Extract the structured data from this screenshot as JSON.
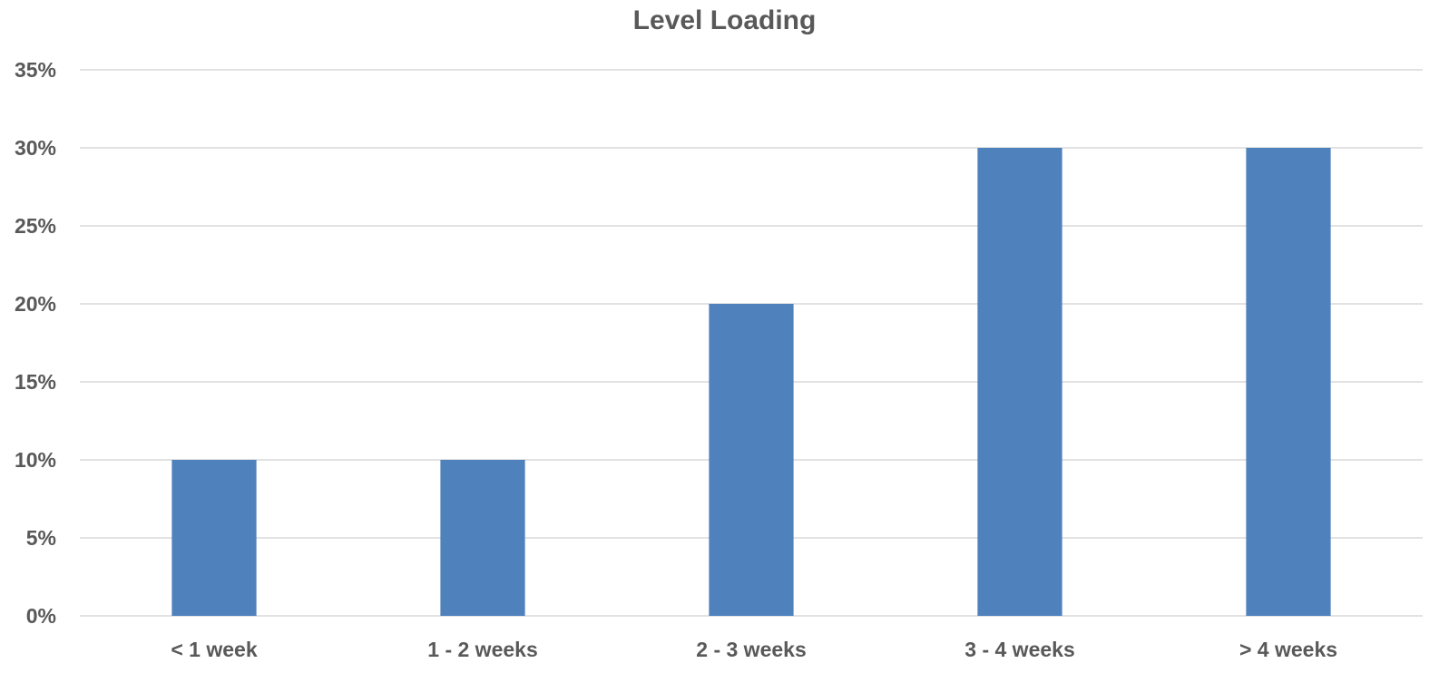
{
  "chart_data": {
    "type": "bar",
    "title": "Level Loading",
    "xlabel": "",
    "ylabel": "",
    "categories": [
      "< 1 week",
      "1 - 2 weeks",
      "2 - 3 weeks",
      "3 - 4 weeks",
      "> 4 weeks"
    ],
    "values": [
      0.1,
      0.1,
      0.2,
      0.3,
      0.3
    ],
    "ylim": [
      0,
      0.35
    ],
    "yticks": [
      0,
      0.05,
      0.1,
      0.15,
      0.2,
      0.25,
      0.3,
      0.35
    ],
    "ytick_labels": [
      "0%",
      "5%",
      "10%",
      "15%",
      "20%",
      "25%",
      "30%",
      "35%"
    ],
    "grid": true,
    "legend": "none",
    "bar_color": "#4f81bd"
  }
}
